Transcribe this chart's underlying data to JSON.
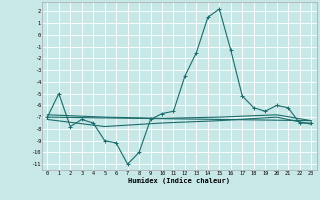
{
  "xlabel": "Humidex (Indice chaleur)",
  "xlim": [
    -0.5,
    23.5
  ],
  "ylim": [
    -11.5,
    2.8
  ],
  "yticks": [
    2,
    1,
    0,
    -1,
    -2,
    -3,
    -4,
    -5,
    -6,
    -7,
    -8,
    -9,
    -10,
    -11
  ],
  "xticks": [
    0,
    1,
    2,
    3,
    4,
    5,
    6,
    7,
    8,
    9,
    10,
    11,
    12,
    13,
    14,
    15,
    16,
    17,
    18,
    19,
    20,
    21,
    22,
    23
  ],
  "bg_color": "#c8e8e8",
  "grid_color": "#ffffff",
  "line_color": "#1a6b6b",
  "line1_x": [
    0,
    1,
    2,
    3,
    4,
    5,
    6,
    7,
    8,
    9,
    10,
    11,
    12,
    13,
    14,
    15,
    16,
    17,
    18,
    19,
    20,
    21,
    22,
    23
  ],
  "line1_y": [
    -7.0,
    -5.0,
    -7.8,
    -7.2,
    -7.5,
    -9.0,
    -9.2,
    -11.0,
    -10.0,
    -7.2,
    -6.7,
    -6.5,
    -3.5,
    -1.5,
    1.5,
    2.2,
    -1.3,
    -5.2,
    -6.2,
    -6.5,
    -6.0,
    -6.2,
    -7.5,
    -7.5
  ],
  "line2_x": [
    0,
    23
  ],
  "line2_y": [
    -7.0,
    -7.3
  ],
  "line3_x": [
    0,
    5,
    10,
    15,
    20,
    23
  ],
  "line3_y": [
    -6.8,
    -7.0,
    -7.1,
    -7.0,
    -6.8,
    -7.3
  ],
  "line4_x": [
    0,
    5,
    10,
    15,
    20,
    23
  ],
  "line4_y": [
    -7.2,
    -7.8,
    -7.5,
    -7.3,
    -7.0,
    -7.6
  ]
}
